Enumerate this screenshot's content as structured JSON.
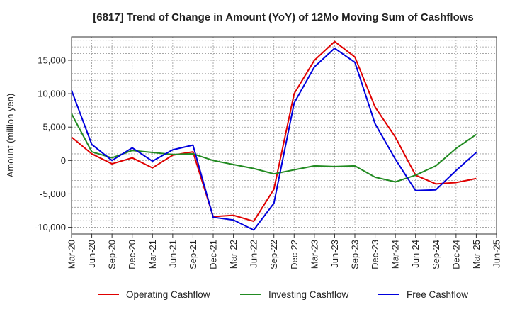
{
  "chart_data": {
    "type": "line",
    "title": "[6817]  Trend of Change in Amount (YoY) of 12Mo Moving Sum of Cashflows",
    "ylabel": "Amount (million yen)",
    "xlabel": "",
    "ylim": [
      -11000,
      18500
    ],
    "yticks": [
      -10000,
      -5000,
      0,
      5000,
      10000,
      15000
    ],
    "ytick_labels": [
      "-10,000",
      "-5,000",
      "0",
      "5,000",
      "10,000",
      "15,000"
    ],
    "grid": true,
    "categories": [
      "Mar-20",
      "Jun-20",
      "Sep-20",
      "Dec-20",
      "Mar-21",
      "Jun-21",
      "Sep-21",
      "Dec-21",
      "Mar-22",
      "Jun-22",
      "Sep-22",
      "Dec-22",
      "Mar-23",
      "Jun-23",
      "Sep-23",
      "Dec-23",
      "Mar-24",
      "Jun-24",
      "Sep-24",
      "Dec-24",
      "Mar-25",
      "Jun-25"
    ],
    "series": [
      {
        "name": "Operating Cashflow",
        "color": "#e00000",
        "values": [
          3500,
          1000,
          -500,
          400,
          -1100,
          800,
          1300,
          -8400,
          -8200,
          -9100,
          -4300,
          10000,
          15000,
          17800,
          15500,
          8000,
          3500,
          -2200,
          -3500,
          -3300,
          -2700,
          null
        ]
      },
      {
        "name": "Investing Cashflow",
        "color": "#228b22",
        "values": [
          7000,
          1300,
          400,
          1500,
          1200,
          900,
          1000,
          0,
          -600,
          -1200,
          -2000,
          -1400,
          -800,
          -900,
          -800,
          -2500,
          -3200,
          -2200,
          -800,
          1800,
          3900,
          null
        ]
      },
      {
        "name": "Free Cashflow",
        "color": "#0000dd",
        "values": [
          10500,
          2400,
          0,
          1900,
          -100,
          1600,
          2300,
          -8500,
          -8900,
          -10400,
          -6400,
          8600,
          14000,
          16800,
          14700,
          5500,
          200,
          -4500,
          -4400,
          -1500,
          1200,
          null
        ]
      }
    ]
  }
}
